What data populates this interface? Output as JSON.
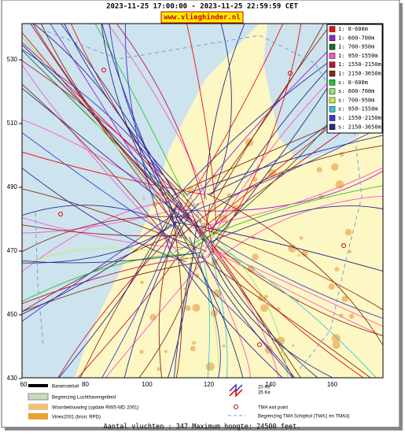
{
  "header": {
    "title": "2023-11-25 17:00:00 - 2023-11-25 22:59:59 CET",
    "site": "www.vlieghinder.nl"
  },
  "map": {
    "yticks": [
      530,
      510,
      490,
      470,
      450,
      430
    ],
    "xticks": [
      60,
      80,
      100,
      120,
      140,
      160
    ]
  },
  "legend": [
    {
      "label": "1: 0-600m",
      "color": "#ee1111"
    },
    {
      "label": "1: 600-700m",
      "color": "#9a1fd0"
    },
    {
      "label": "1: 700-950m",
      "color": "#1f6f1f"
    },
    {
      "label": "1: 950-1550m",
      "color": "#ff55c8"
    },
    {
      "label": "1: 1550-2150m",
      "color": "#c8103c"
    },
    {
      "label": "1: 2150-3650m",
      "color": "#8c2a12"
    },
    {
      "label": "s: 0-600m",
      "color": "#22cc22"
    },
    {
      "label": "s: 600-700m",
      "color": "#88ee66"
    },
    {
      "label": "s: 700-950m",
      "color": "#c8f048"
    },
    {
      "label": "s: 950-1550m",
      "color": "#33c8d8"
    },
    {
      "label": "s: 1550-2150m",
      "color": "#3a3ad0"
    },
    {
      "label": "s: 2150-3650m",
      "color": "#2a2a8c"
    }
  ],
  "key": {
    "runways": "Banenstelsel",
    "airport_boundary": "Begrenzing Luchthavengebied",
    "housing": "Woonbebouwing (update RWS-MD 2001)",
    "vinex": "Vinex2001 (bron: RPD)",
    "ke20": "20 Ke",
    "ke35": "35 Ke",
    "exit": "TMA exit point",
    "tma": "Begrenzing TMA Schiphol  (TMA1 en TMA3)"
  },
  "footer": "Aantal vluchten : 347 Maximum hoogte: 24500 feet."
}
